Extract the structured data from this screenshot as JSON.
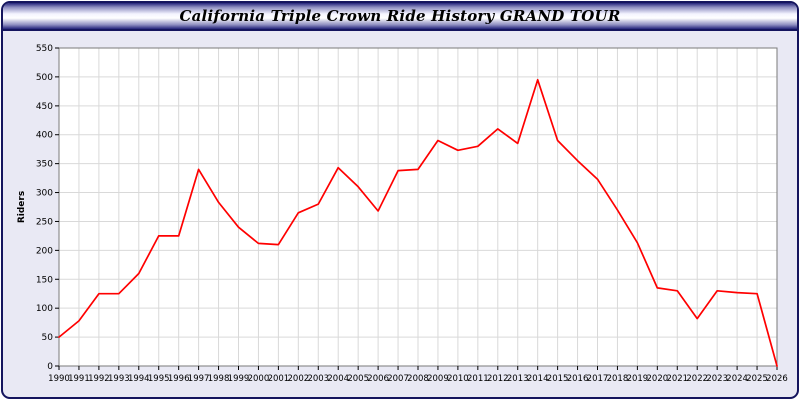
{
  "window": {
    "title": "California Triple Crown Ride History GRAND TOUR"
  },
  "chart_data": {
    "type": "line",
    "title": "California Triple Crown Ride History GRAND TOUR",
    "xlabel": "",
    "ylabel": "Riders",
    "ylim": [
      0,
      550
    ],
    "ytick_interval": 50,
    "grid": true,
    "legend": "none",
    "line_color": "#ff0000",
    "plot_bg": "#ffffff",
    "grid_color": "#d9d9d9",
    "axis_color": "#7a7a7a",
    "categories": [
      1990,
      1991,
      1992,
      1993,
      1994,
      1995,
      1996,
      1997,
      1998,
      1999,
      2000,
      2001,
      2002,
      2003,
      2004,
      2005,
      2006,
      2007,
      2008,
      2009,
      2010,
      2011,
      2012,
      2013,
      2014,
      2015,
      2016,
      2017,
      2018,
      2019,
      2020,
      2021,
      2022,
      2023,
      2024,
      2025,
      2026
    ],
    "series": [
      {
        "name": "Riders",
        "values": [
          50,
          78,
          125,
          125,
          160,
          225,
          225,
          340,
          283,
          240,
          212,
          210,
          265,
          280,
          343,
          310,
          268,
          338,
          340,
          390,
          373,
          380,
          410,
          385,
          495,
          390,
          355,
          323,
          270,
          213,
          135,
          130,
          82,
          130,
          127,
          125,
          0
        ]
      }
    ]
  }
}
